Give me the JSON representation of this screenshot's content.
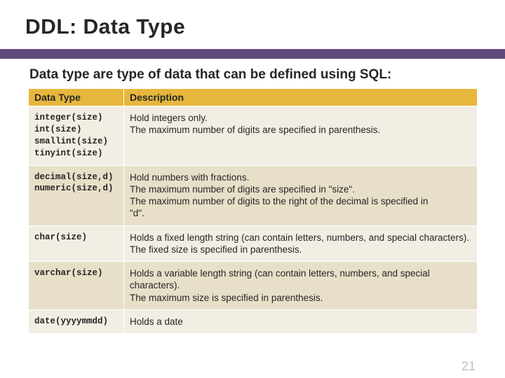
{
  "title": "DDL: Data Type",
  "subtitle": "Data type are type of data that can be defined using SQL:",
  "page_number": "21",
  "accent_color": "#604a7b",
  "header_bg": "#e6b73c",
  "band_a_bg": "#f2eee4",
  "band_b_bg": "#e7dfc8",
  "table": {
    "headers": {
      "col1": "Data Type",
      "col2": "Description"
    },
    "rows": [
      {
        "band": "a",
        "type_lines": [
          "integer(size)",
          "int(size)",
          "smallint(size)",
          "tinyint(size)"
        ],
        "desc_lines": [
          "Hold integers only.",
          "The maximum number of digits are specified in parenthesis."
        ]
      },
      {
        "band": "b",
        "type_lines": [
          "decimal(size,d)",
          "numeric(size,d)"
        ],
        "desc_lines": [
          "Hold numbers with fractions.",
          "The maximum number of digits are specified in \"size\".",
          "The maximum number of digits to the right of the decimal is specified in",
          "        \"d\"."
        ]
      },
      {
        "band": "a",
        "type_lines": [
          "char(size)"
        ],
        "desc_lines": [
          "Holds a fixed length string (can contain letters, numbers, and special characters).",
          "The fixed size is specified in parenthesis."
        ]
      },
      {
        "band": "b",
        "type_lines": [
          "varchar(size)"
        ],
        "desc_lines": [
          "Holds a variable length string (can contain letters, numbers, and special characters).",
          "The maximum size is specified in parenthesis."
        ]
      },
      {
        "band": "a",
        "type_lines": [
          "date(yyyymmdd)"
        ],
        "desc_lines": [
          "Holds a date"
        ]
      }
    ]
  }
}
